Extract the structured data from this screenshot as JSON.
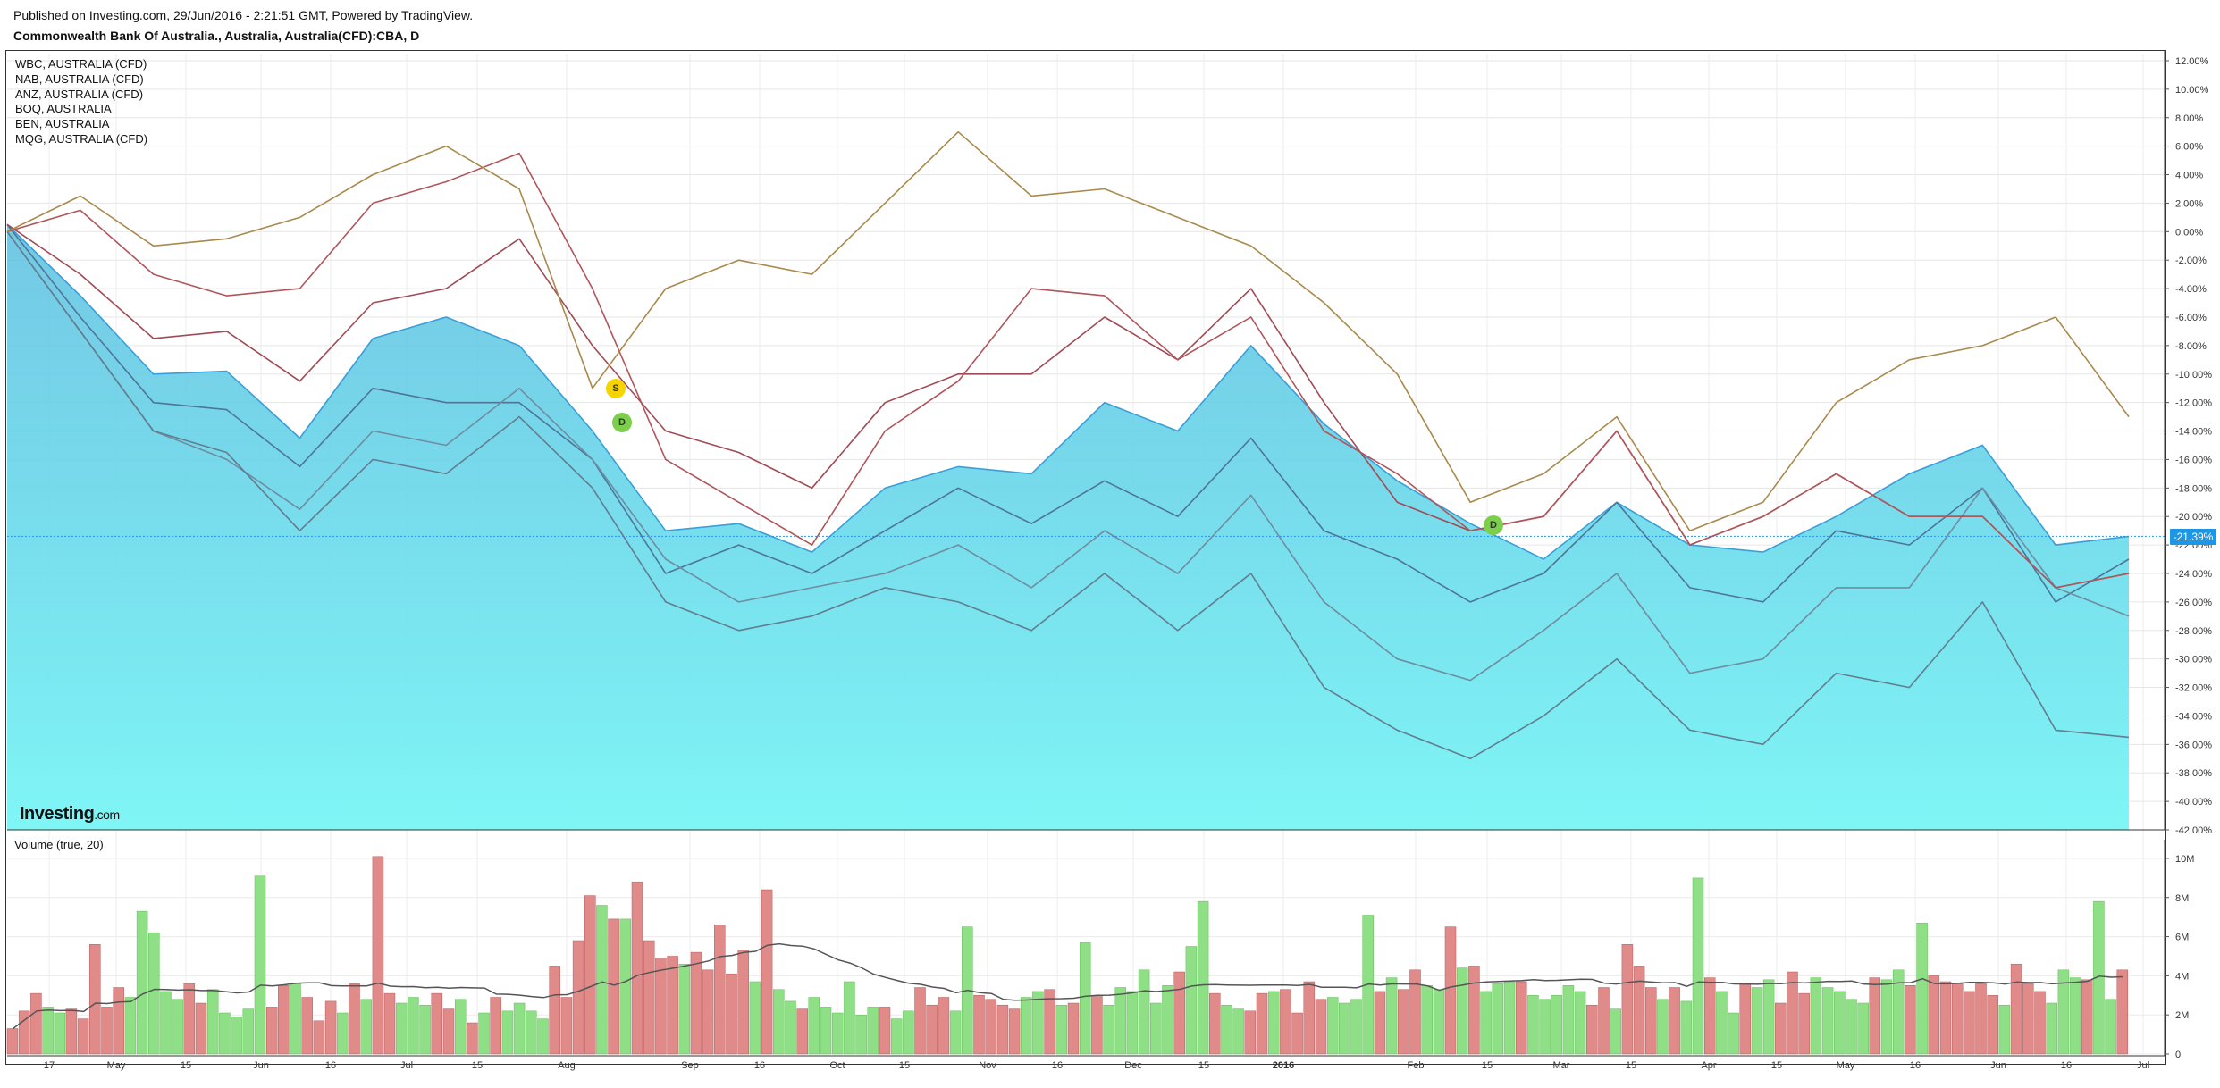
{
  "header": {
    "published": "Published on Investing.com, 29/Jun/2016 - 2:21:51 GMT, Powered by TradingView.",
    "symbol_title": "Commonwealth Bank Of Australia., Australia, Australia(CFD):CBA, D"
  },
  "legend": [
    "WBC, AUSTRALIA (CFD)",
    "NAB, AUSTRALIA (CFD)",
    "ANZ, AUSTRALIA (CFD)",
    "BOQ, AUSTRALIA",
    "BEN, AUSTRALIA",
    "MQG, AUSTRALIA (CFD)"
  ],
  "volume_label": "Volume (true, 20)",
  "logo": {
    "main": "Investing",
    "suffix": ".com"
  },
  "current_value_label": "-21.39%",
  "markers": {
    "split": "S",
    "dividend": "D"
  },
  "colors": {
    "area_top": "#5bbfe0",
    "area_bottom": "#7ff6f6",
    "area_line": "#3a9fd8",
    "up_bar": "#8fdf86",
    "down_bar": "#e08a8a",
    "volume_ma": "#555555",
    "price_tag": "#1e96e6"
  },
  "chart_data": [
    {
      "type": "area",
      "title": "Commonwealth Bank Of Australia., Australia, Australia(CFD):CBA, D",
      "x_tick_labels": [
        "17",
        "May",
        "15",
        "Jun",
        "16",
        "Jul",
        "15",
        "Aug",
        "Sep",
        "16",
        "Oct",
        "15",
        "Nov",
        "16",
        "Dec",
        "15",
        "2016",
        "Feb",
        "15",
        "Mar",
        "15",
        "Apr",
        "15",
        "May",
        "16",
        "Jun",
        "16",
        "Jul"
      ],
      "y_tick_labels": [
        "12.00%",
        "10.00%",
        "8.00%",
        "6.00%",
        "4.00%",
        "2.00%",
        "0.00%",
        "-2.00%",
        "-4.00%",
        "-6.00%",
        "-8.00%",
        "-10.00%",
        "-12.00%",
        "-14.00%",
        "-16.00%",
        "-18.00%",
        "-20.00%",
        "-22.00%",
        "-24.00%",
        "-26.00%",
        "-28.00%",
        "-30.00%",
        "-32.00%",
        "-34.00%",
        "-36.00%",
        "-38.00%",
        "-40.00%",
        "-42.00%"
      ],
      "ylim": [
        -42,
        12.5
      ],
      "unit": "% change",
      "x": [
        "2015-04-17",
        "2015-05-01",
        "2015-05-15",
        "2015-06-01",
        "2015-06-16",
        "2015-07-01",
        "2015-07-15",
        "2015-08-01",
        "2015-08-15",
        "2015-09-01",
        "2015-09-16",
        "2015-10-01",
        "2015-10-15",
        "2015-11-01",
        "2015-11-16",
        "2015-12-01",
        "2015-12-15",
        "2016-01-01",
        "2016-01-15",
        "2016-02-01",
        "2016-02-15",
        "2016-03-01",
        "2016-03-15",
        "2016-04-01",
        "2016-04-15",
        "2016-05-01",
        "2016-05-16",
        "2016-06-01",
        "2016-06-16",
        "2016-06-28"
      ],
      "series": [
        {
          "name": "CBA",
          "color": "#3a9fd8",
          "values": [
            0.5,
            -4.5,
            -10,
            -9.8,
            -14.5,
            -7.5,
            -6,
            -8,
            -14,
            -21,
            -20.5,
            -22.5,
            -18,
            -16.5,
            -17,
            -12,
            -14,
            -8,
            -13.5,
            -17.5,
            -20.5,
            -23,
            -19,
            -22,
            -22.5,
            -20,
            -17,
            -15,
            -22,
            -21.4
          ]
        },
        {
          "name": "WBC, AUSTRALIA (CFD)",
          "color": "#4d7598",
          "values": [
            0.5,
            -6,
            -12,
            -12.5,
            -16.5,
            -11,
            -12,
            -12,
            -16,
            -24,
            -22,
            -24,
            -21,
            -18,
            -20.5,
            -17.5,
            -20,
            -14.5,
            -21,
            -23,
            -26,
            -24,
            -19,
            -25,
            -26,
            -21,
            -22,
            -18,
            -26,
            -23
          ]
        },
        {
          "name": "NAB, AUSTRALIA (CFD)",
          "color": "#6f8ca0",
          "values": [
            0,
            -7,
            -14,
            -16,
            -19.5,
            -14,
            -15,
            -11,
            -16,
            -23,
            -26,
            -25,
            -24,
            -22,
            -25,
            -21,
            -24,
            -18.5,
            -26,
            -30,
            -31.5,
            -28,
            -24,
            -31,
            -30,
            -25,
            -25,
            -18,
            -25,
            -27
          ]
        },
        {
          "name": "ANZ, AUSTRALIA (CFD)",
          "color": "#627d90",
          "values": [
            0,
            -7,
            -14,
            -15.5,
            -21,
            -16,
            -17,
            -13,
            -18,
            -26,
            -28,
            -27,
            -25,
            -26,
            -28,
            -24,
            -28,
            -24,
            -32,
            -35,
            -37,
            -34,
            -30,
            -35,
            -36,
            -31,
            -32,
            -26,
            -35,
            -35.5
          ]
        },
        {
          "name": "BOQ, AUSTRALIA",
          "color": "#a04a55",
          "values": [
            0.5,
            -3,
            -7.5,
            -7,
            -10.5,
            -5,
            -4,
            -0.5,
            -8,
            -14,
            -15.5,
            -18,
            -12,
            -10,
            -10,
            -6,
            -9,
            -4,
            -12,
            -19,
            -21,
            -20,
            -14,
            -22,
            -20,
            -17,
            -20,
            -20,
            -25,
            -24
          ]
        },
        {
          "name": "BEN, AUSTRALIA",
          "color": "#b0555a",
          "values": [
            0,
            1.5,
            -3,
            -4.5,
            -4,
            2,
            3.5,
            5.5,
            -4,
            -16,
            -19,
            -22,
            -14,
            -10.5,
            -4,
            -4.5,
            -9,
            -6,
            -14,
            -17,
            -21,
            -20,
            -14,
            -22,
            -20,
            -17,
            -20,
            -20,
            -25,
            -24
          ]
        },
        {
          "name": "MQG, AUSTRALIA (CFD)",
          "color": "#a98a4c",
          "values": [
            0,
            2.5,
            -1,
            -0.5,
            1,
            4,
            6,
            3,
            -11,
            -4,
            -2,
            -3,
            2,
            7,
            2.5,
            3,
            1,
            -1,
            -5,
            -10,
            -19,
            -17,
            -13,
            -21,
            -19,
            -12,
            -9,
            -8,
            -6,
            -13
          ]
        }
      ],
      "current_value": -21.39
    },
    {
      "type": "bar",
      "title": "Volume (true, 20)",
      "y_tick_labels": [
        "10M",
        "8M",
        "6M",
        "4M",
        "2M",
        "0"
      ],
      "ylim": [
        0,
        10.5
      ],
      "unit": "M",
      "values": [
        1.3,
        2.2,
        3.1,
        2.4,
        2.1,
        2.3,
        1.8,
        5.6,
        2.4,
        3.4,
        2.9,
        7.3,
        6.2,
        3.2,
        2.8,
        3.6,
        2.6,
        3.3,
        2.1,
        1.9,
        2.3,
        9.1,
        2.4,
        3.5,
        3.6,
        2.9,
        1.7,
        2.7,
        2.1,
        3.6,
        2.8,
        10.1,
        3.1,
        2.6,
        2.9,
        2.5,
        3.1,
        2.3,
        2.8,
        1.6,
        2.1,
        2.9,
        2.2,
        2.6,
        2.2,
        1.8,
        4.5,
        2.9,
        5.8,
        8.1,
        7.6,
        6.9,
        6.9,
        8.8,
        5.8,
        4.9,
        5.0,
        4.6,
        5.2,
        4.3,
        6.6,
        4.1,
        5.3,
        3.7,
        8.4,
        3.3,
        2.7,
        2.3,
        2.9,
        2.4,
        2.1,
        3.7,
        2.0,
        2.4,
        2.4,
        1.8,
        2.2,
        3.4,
        2.5,
        2.9,
        2.2,
        6.5,
        3.0,
        2.8,
        2.5,
        2.3,
        2.9,
        3.2,
        3.3,
        2.5,
        2.6,
        5.7,
        3.0,
        2.5,
        3.4,
        3.2,
        4.3,
        2.6,
        3.5,
        4.2,
        5.5,
        7.8,
        3.1,
        2.5,
        2.3,
        2.2,
        3.1,
        3.2,
        3.3,
        2.1,
        3.7,
        2.8,
        2.9,
        2.6,
        2.8,
        7.1,
        3.2,
        3.9,
        3.3,
        4.3,
        3.5,
        3.3,
        6.5,
        4.4,
        4.5,
        3.2,
        3.6,
        3.7,
        3.7,
        3.0,
        2.8,
        3.0,
        3.5,
        3.2,
        2.5,
        3.4,
        2.3,
        5.6,
        4.5,
        3.4,
        2.8,
        3.4,
        2.7,
        9.0,
        3.9,
        3.2,
        2.1,
        3.6,
        3.4,
        3.8,
        2.6,
        4.2,
        3.1,
        3.9,
        3.4,
        3.2,
        2.8,
        2.6,
        3.9,
        3.8,
        4.3,
        3.5,
        6.7,
        4.0,
        3.7,
        3.6,
        3.2,
        3.6,
        3.0,
        2.5,
        4.6,
        3.6,
        3.2,
        2.6,
        4.3,
        3.9,
        3.8,
        7.8,
        2.8,
        4.3
      ],
      "moving_average_period": 20
    }
  ]
}
